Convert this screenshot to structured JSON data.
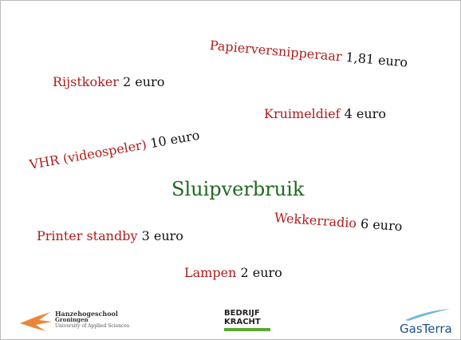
{
  "title": "Sluipverbruik",
  "items": [
    {
      "name": "Papierversnipperaar",
      "price": "1,81 euro"
    },
    {
      "name": "Rijstkoker",
      "price": "2 euro"
    },
    {
      "name": "Kruimeldief",
      "price": "4 euro"
    },
    {
      "name": "VHR (videospeler)",
      "price": "10 euro"
    },
    {
      "name": "Wekkerradio",
      "price": "6 euro"
    },
    {
      "name": "Printer standby",
      "price": "3 euro"
    },
    {
      "name": "Lampen",
      "price": "2 euro"
    }
  ],
  "logos": {
    "hanze": [
      "Hanzehogeschool",
      "Groningen",
      "University of Applied Sciences"
    ],
    "bedrijfskracht": [
      "BEDRIJF",
      "KRACHT"
    ],
    "gasterra": "GasTerra"
  }
}
